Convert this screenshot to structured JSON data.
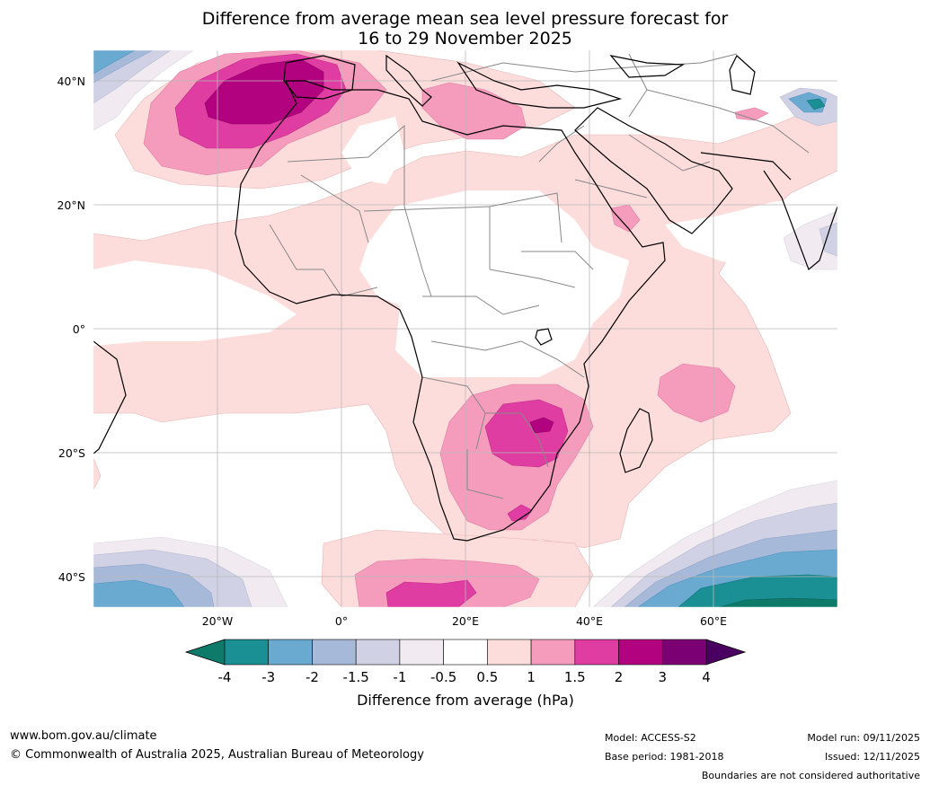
{
  "title": {
    "line1": "Difference from average mean sea level pressure forecast for",
    "line2": "16 to 29 November 2025"
  },
  "map": {
    "lat_labels": [
      "40°N",
      "20°N",
      "0°",
      "20°S",
      "40°S"
    ],
    "lon_labels": [
      "20°W",
      "0°",
      "20°E",
      "40°E",
      "60°E"
    ],
    "region": "Africa and surrounding oceans"
  },
  "colorbar": {
    "title": "Difference from average (hPa)",
    "ticks": [
      "-4",
      "-3",
      "-2",
      "-1.5",
      "-1",
      "-0.5",
      "0.5",
      "1",
      "1.5",
      "2",
      "3",
      "4"
    ],
    "colors": [
      "#0d7a6a",
      "#1a8f94",
      "#6aaad0",
      "#a7b9d8",
      "#d0d1e4",
      "#f1ebf1",
      "#ffffff",
      "#fddcdc",
      "#f59cbc",
      "#df3da2",
      "#b30280",
      "#7a0074",
      "#4a0060"
    ]
  },
  "footer": {
    "website": "www.bom.gov.au/climate",
    "copyright": "© Commonwealth of Australia 2025, Australian Bureau of Meteorology",
    "model": "Model: ACCESS-S2",
    "base_period": "Base period: 1981-2018",
    "model_run": "Model run: 09/11/2025",
    "issued": "Issued: 12/11/2025",
    "disclaimer": "Boundaries are not considered authoritative"
  }
}
